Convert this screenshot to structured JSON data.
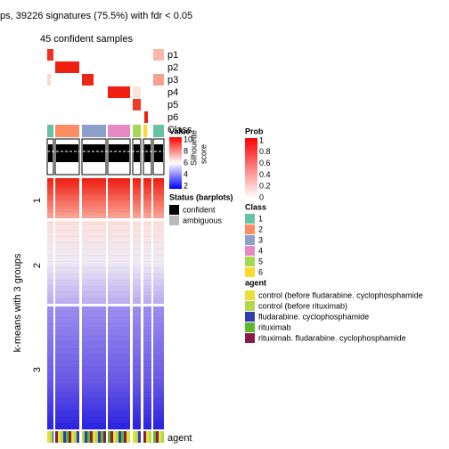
{
  "header": {
    "title": "ps, 39226 signatures (75.5%) with fdr < 0.05",
    "subtitle": "45 confident samples"
  },
  "annotation_rows": [
    "p1",
    "p2",
    "p3",
    "p4",
    "p5",
    "p6",
    "Class"
  ],
  "silhouette": {
    "line1": "Silhouette",
    "line2": "score"
  },
  "row_title": "k-means with 3 groups",
  "row_groups": [
    "1",
    "2",
    "3"
  ],
  "bottom_label": "agent",
  "legends": {
    "value": {
      "title": "Value",
      "ticks": [
        "10",
        "8",
        "6",
        "4",
        "2"
      ]
    },
    "status": {
      "title": "Status (barplots)",
      "items": [
        "confident",
        "ambiguous"
      ]
    },
    "prob": {
      "title": "Prob",
      "ticks": [
        "1",
        "0.8",
        "0.6",
        "0.4",
        "0.2",
        "0"
      ]
    },
    "class": {
      "title": "Class",
      "items": [
        "1",
        "2",
        "3",
        "4",
        "5",
        "6"
      ]
    },
    "agent": {
      "title": "agent",
      "items": [
        "control (before fludarabine. cyclophosphamide",
        "control (before rituximab)",
        "fludarabine. cyclophosphamide",
        "rituximab",
        "rituximab. fludarabine. cyclophosphamide"
      ]
    }
  }
}
